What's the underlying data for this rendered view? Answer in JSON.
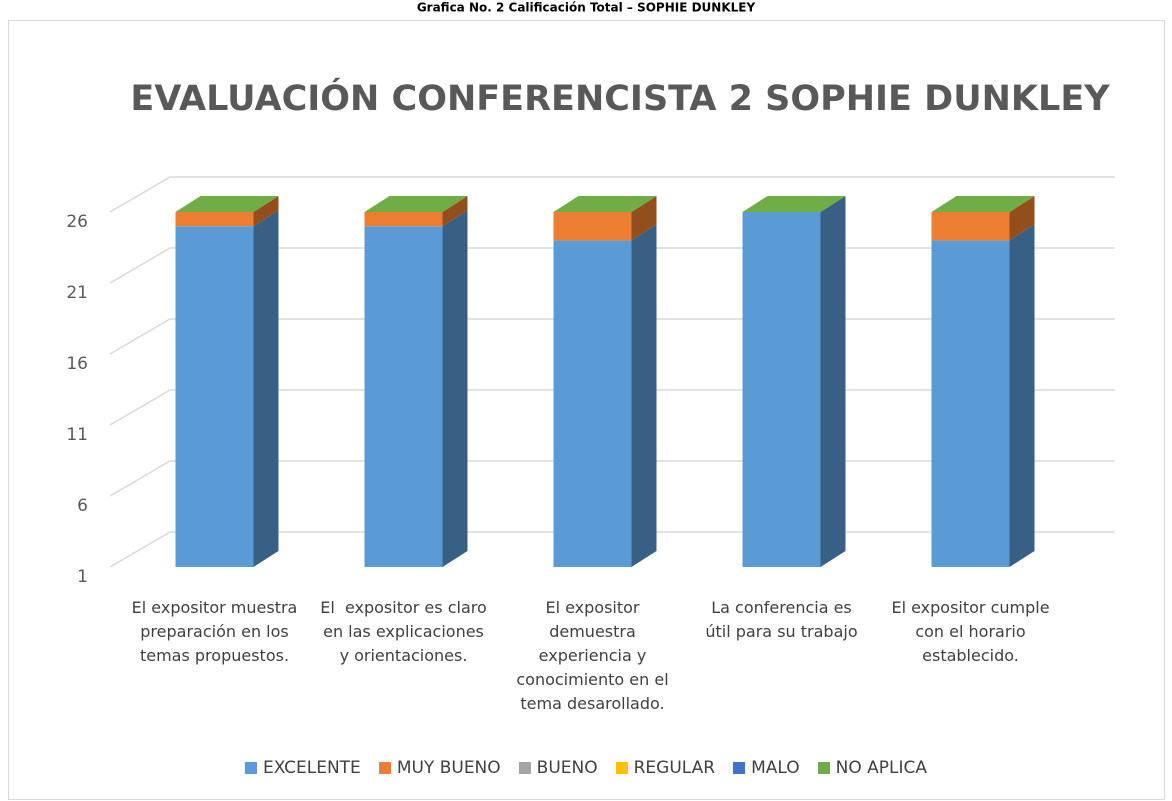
{
  "caption": "Grafica No. 2 Calificación Total – SOPHIE DUNKLEY",
  "chart_data": {
    "type": "bar3d_stacked",
    "title": "EVALUACIÓN CONFERENCISTA  2 SOPHIE DUNKLEY",
    "categories": [
      "El expositor muestra preparación en los temas propuestos.",
      "El  expositor es claro en las explicaciones y orientaciones.",
      "El expositor demuestra experiencia y conocimiento en el tema desarollado.",
      "La conferencia es útil para su trabajo",
      "El expositor cumple con el horario establecido."
    ],
    "series": [
      {
        "name": "EXCELENTE",
        "color": "#5b9bd5",
        "values": [
          25,
          25,
          24,
          26,
          24
        ]
      },
      {
        "name": "MUY BUENO",
        "color": "#ed7d31",
        "values": [
          1,
          1,
          2,
          0,
          2
        ]
      },
      {
        "name": "BUENO",
        "color": "#a5a5a5",
        "values": [
          0,
          0,
          0,
          0,
          0
        ]
      },
      {
        "name": "REGULAR",
        "color": "#ffc000",
        "values": [
          0,
          0,
          0,
          0,
          0
        ]
      },
      {
        "name": "MALO",
        "color": "#4472c4",
        "values": [
          0,
          0,
          0,
          0,
          0
        ]
      },
      {
        "name": "NO APLICA",
        "color": "#70ad47",
        "values": [
          0,
          0,
          0,
          0,
          0
        ]
      }
    ],
    "ylim": [
      1,
      26
    ],
    "yticks": [
      1,
      6,
      11,
      16,
      21,
      26
    ],
    "grid": true
  }
}
